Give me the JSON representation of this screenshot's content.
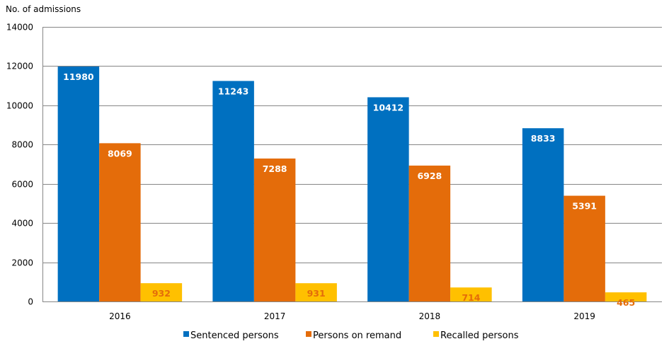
{
  "chart_data": {
    "type": "bar",
    "ylabel": "No. of admissions",
    "categories": [
      "2016",
      "2017",
      "2018",
      "2019"
    ],
    "ylim": [
      0,
      14000
    ],
    "yticks": [
      0,
      2000,
      4000,
      6000,
      8000,
      10000,
      12000,
      14000
    ],
    "grid": true,
    "legend_position": "bottom",
    "series": [
      {
        "name": "Sentenced persons",
        "color": "#0070C0",
        "label_color": "#FFFFFF",
        "values": [
          11980,
          11243,
          10412,
          8833
        ]
      },
      {
        "name": "Persons on remand",
        "color": "#E46C0A",
        "label_color": "#FFFFFF",
        "values": [
          8069,
          7288,
          6928,
          5391
        ]
      },
      {
        "name": "Recalled persons",
        "color": "#FFC000",
        "label_color": "#E46C0A",
        "values": [
          932,
          931,
          714,
          465
        ]
      }
    ]
  }
}
